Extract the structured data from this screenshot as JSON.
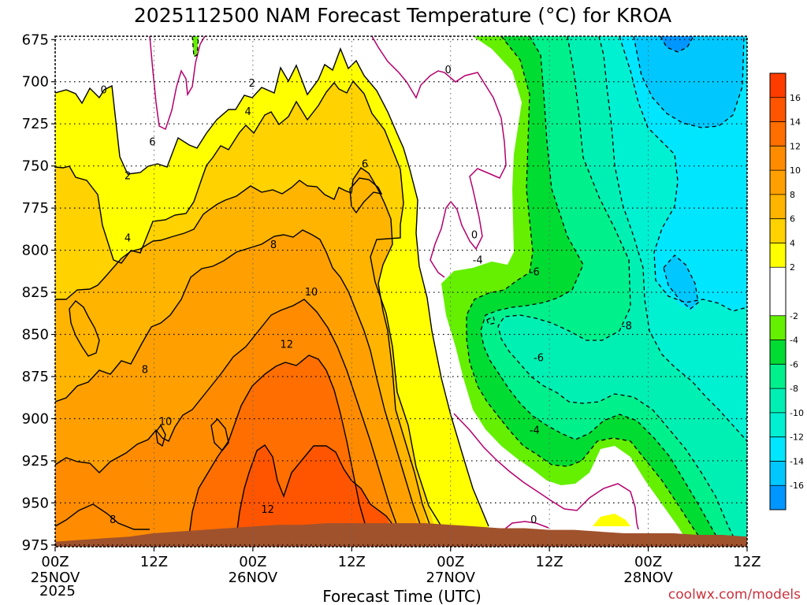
{
  "chart_data": {
    "type": "heatmap",
    "title": "2025112500 NAM Forecast Temperature (°C) for KROA",
    "xlabel": "Forecast Time (UTC)",
    "ylabel": "",
    "credit": "coolwx.com/models",
    "year_label": "2025",
    "x_ticks": [
      {
        "hour": 0,
        "label": "00Z",
        "date": "25NOV"
      },
      {
        "hour": 12,
        "label": "12Z",
        "date": ""
      },
      {
        "hour": 24,
        "label": "00Z",
        "date": "26NOV"
      },
      {
        "hour": 36,
        "label": "12Z",
        "date": ""
      },
      {
        "hour": 48,
        "label": "00Z",
        "date": "27NOV"
      },
      {
        "hour": 60,
        "label": "12Z",
        "date": ""
      },
      {
        "hour": 72,
        "label": "00Z",
        "date": "28NOV"
      },
      {
        "hour": 84,
        "label": "12Z",
        "date": ""
      }
    ],
    "xlim": [
      0,
      84
    ],
    "y_ticks": [
      675,
      700,
      725,
      750,
      775,
      800,
      825,
      850,
      875,
      900,
      925,
      950,
      975
    ],
    "ylim": [
      976,
      673
    ],
    "colorbar": {
      "ticks": [
        16,
        14,
        12,
        10,
        8,
        6,
        4,
        2,
        -2,
        -4,
        -6,
        -8,
        -10,
        -12,
        -14,
        -16
      ],
      "bins": [
        {
          "lo": 16,
          "hi": 18,
          "color": "#ff3c00"
        },
        {
          "lo": 14,
          "hi": 16,
          "color": "#ff5500"
        },
        {
          "lo": 12,
          "hi": 14,
          "color": "#ff6e00"
        },
        {
          "lo": 10,
          "hi": 12,
          "color": "#ff8c00"
        },
        {
          "lo": 8,
          "hi": 10,
          "color": "#ffa000"
        },
        {
          "lo": 6,
          "hi": 8,
          "color": "#ffb400"
        },
        {
          "lo": 4,
          "hi": 6,
          "color": "#ffd200"
        },
        {
          "lo": 2,
          "hi": 4,
          "color": "#ffff00"
        },
        {
          "lo": -2,
          "hi": 2,
          "color": "#ffffff"
        },
        {
          "lo": -4,
          "hi": -2,
          "color": "#64f000"
        },
        {
          "lo": -6,
          "hi": -4,
          "color": "#00dc32"
        },
        {
          "lo": -8,
          "hi": -6,
          "color": "#00f08c"
        },
        {
          "lo": -10,
          "hi": -8,
          "color": "#00f0b4"
        },
        {
          "lo": -12,
          "hi": -10,
          "color": "#00f0d2"
        },
        {
          "lo": -14,
          "hi": -12,
          "color": "#00e6ff"
        },
        {
          "lo": -16,
          "hi": -14,
          "color": "#00c8ff"
        },
        {
          "lo": -18,
          "hi": -16,
          "color": "#0096ff"
        }
      ]
    },
    "contour_labels": [
      {
        "text": "0",
        "hour": 5.9,
        "p": 705
      },
      {
        "text": "2",
        "hour": 8.8,
        "p": 756
      },
      {
        "text": "2",
        "hour": 23.9,
        "p": 701
      },
      {
        "text": "4",
        "hour": 8.8,
        "p": 793
      },
      {
        "text": "4",
        "hour": 23.4,
        "p": 718
      },
      {
        "text": "6",
        "hour": 11.8,
        "p": 736
      },
      {
        "text": "6",
        "hour": 37.6,
        "p": 749
      },
      {
        "text": "8",
        "hour": 26.5,
        "p": 797
      },
      {
        "text": "8",
        "hour": 10.9,
        "p": 871
      },
      {
        "text": "8",
        "hour": 7.0,
        "p": 960
      },
      {
        "text": "10",
        "hour": 31.1,
        "p": 825
      },
      {
        "text": "10",
        "hour": 13.4,
        "p": 902
      },
      {
        "text": "12",
        "hour": 28.1,
        "p": 856
      },
      {
        "text": "12",
        "hour": 25.8,
        "p": 954
      },
      {
        "text": "0",
        "hour": 47.7,
        "p": 693
      },
      {
        "text": "0",
        "hour": 50.9,
        "p": 791
      },
      {
        "text": "0",
        "hour": 58.1,
        "p": 960
      },
      {
        "text": "-4",
        "hour": 51.3,
        "p": 806
      },
      {
        "text": "-6",
        "hour": 58.2,
        "p": 813
      },
      {
        "text": "-6",
        "hour": 58.7,
        "p": 864
      },
      {
        "text": "-4",
        "hour": 58.2,
        "p": 907
      },
      {
        "text": "-8",
        "hour": 69.4,
        "p": 845
      }
    ],
    "series": [
      {
        "name": "terrain_surface_hPa",
        "hours": [
          0,
          3,
          6,
          9,
          12,
          15,
          18,
          21,
          24,
          27,
          30,
          33,
          36,
          39,
          42,
          45,
          48,
          51,
          54,
          57,
          60,
          63,
          66,
          69,
          72,
          75,
          78,
          81,
          84
        ],
        "values": [
          973,
          972,
          971,
          970,
          968,
          967,
          966,
          965,
          964,
          963,
          963,
          962,
          962,
          962,
          962,
          962,
          963,
          964,
          965,
          965,
          966,
          966,
          967,
          968,
          968,
          968,
          969,
          969,
          970
        ]
      }
    ]
  }
}
